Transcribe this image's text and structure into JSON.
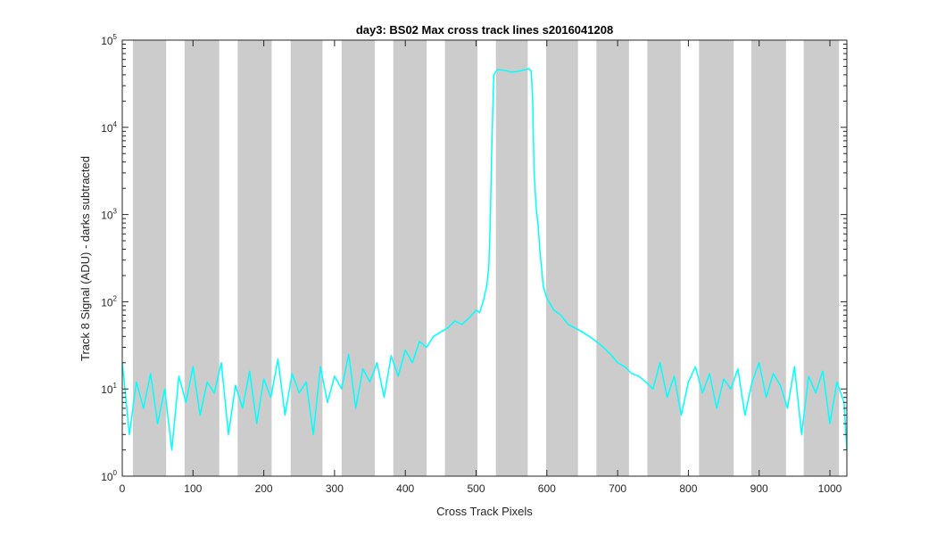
{
  "chart_data": {
    "type": "line",
    "title": "day3: BS02  Max cross track lines  s2016041208",
    "xlabel": "Cross Track Pixels",
    "ylabel": "Track 8 Signal (ADU) - darks subtracted",
    "xlim": [
      0,
      1024
    ],
    "ylim": [
      1,
      100000
    ],
    "y_scale": "log",
    "x_ticks": [
      0,
      100,
      200,
      300,
      400,
      500,
      600,
      700,
      800,
      900,
      1000
    ],
    "x_tick_labels": [
      "0",
      "100",
      "200",
      "300",
      "400",
      "500",
      "600",
      "700",
      "800",
      "900",
      "1000"
    ],
    "y_ticks": [
      1,
      10,
      100,
      1000,
      10000,
      100000
    ],
    "y_tick_labels": [
      {
        "base": "10",
        "exp": "0"
      },
      {
        "base": "10",
        "exp": "1"
      },
      {
        "base": "10",
        "exp": "2"
      },
      {
        "base": "10",
        "exp": "3"
      },
      {
        "base": "10",
        "exp": "4"
      },
      {
        "base": "10",
        "exp": "5"
      }
    ],
    "grid": false,
    "shaded_regions": {
      "color": "#cccccc",
      "ranges": [
        [
          15,
          62
        ],
        [
          88,
          137
        ],
        [
          163,
          211
        ],
        [
          238,
          283
        ],
        [
          310,
          357
        ],
        [
          383,
          430
        ],
        [
          456,
          502
        ],
        [
          528,
          573
        ],
        [
          599,
          644
        ],
        [
          670,
          716
        ],
        [
          742,
          789
        ],
        [
          815,
          864
        ],
        [
          889,
          938
        ],
        [
          963,
          1013
        ]
      ]
    },
    "series": [
      {
        "color": "#00ffff",
        "x": [
          0,
          5,
          10,
          20,
          30,
          40,
          50,
          60,
          70,
          80,
          90,
          100,
          110,
          120,
          130,
          140,
          150,
          160,
          170,
          180,
          190,
          200,
          210,
          220,
          230,
          240,
          250,
          260,
          270,
          280,
          290,
          300,
          310,
          320,
          330,
          340,
          350,
          360,
          370,
          380,
          390,
          400,
          410,
          420,
          430,
          440,
          450,
          460,
          470,
          480,
          490,
          500,
          505,
          510,
          515,
          518,
          520,
          522,
          525,
          530,
          540,
          550,
          560,
          570,
          575,
          578,
          580,
          582,
          585,
          588,
          590,
          595,
          600,
          610,
          620,
          630,
          640,
          650,
          660,
          670,
          680,
          690,
          700,
          710,
          720,
          730,
          740,
          750,
          760,
          770,
          780,
          790,
          800,
          810,
          820,
          830,
          840,
          850,
          860,
          870,
          880,
          890,
          900,
          910,
          920,
          930,
          940,
          950,
          960,
          970,
          980,
          990,
          1000,
          1010,
          1020,
          1024
        ],
        "y": [
          20,
          8,
          3,
          12,
          6,
          15,
          4,
          10,
          2,
          14,
          7,
          18,
          5,
          12,
          9,
          20,
          3,
          11,
          6,
          16,
          4,
          13,
          8,
          22,
          5,
          15,
          9,
          12,
          3,
          18,
          7,
          14,
          10,
          25,
          6,
          17,
          12,
          20,
          8,
          24,
          14,
          28,
          20,
          35,
          30,
          40,
          45,
          50,
          60,
          55,
          65,
          80,
          75,
          100,
          150,
          250,
          800,
          5000,
          40000,
          46000,
          45000,
          43000,
          44000,
          46000,
          47000,
          44000,
          20000,
          3000,
          1200,
          700,
          400,
          150,
          110,
          80,
          70,
          55,
          50,
          45,
          40,
          35,
          30,
          25,
          20,
          18,
          15,
          14,
          12,
          10,
          20,
          8,
          14,
          5,
          12,
          18,
          9,
          15,
          6,
          13,
          10,
          17,
          5,
          12,
          20,
          8,
          15,
          11,
          6,
          18,
          3,
          14,
          9,
          16,
          4,
          12,
          7,
          2
        ]
      }
    ]
  }
}
